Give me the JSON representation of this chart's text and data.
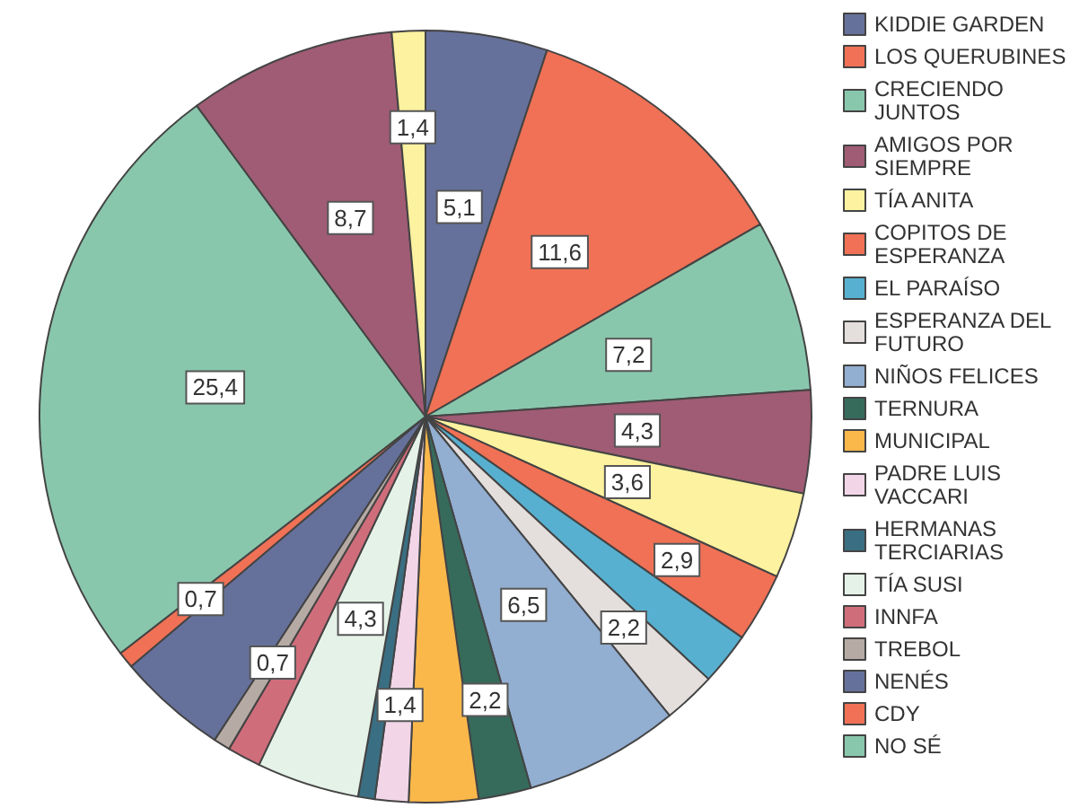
{
  "chart_data": {
    "type": "pie",
    "categories": [
      "KIDDIE GARDEN",
      "LOS QUERUBINES",
      "CRECIENDO JUNTOS",
      "AMIGOS POR SIEMPRE",
      "TÍA ANITA",
      "COPITOS DE ESPERANZA",
      "EL PARAÍSO",
      "ESPERANZA DEL FUTURO",
      "NIÑOS FELICES",
      "TERNURA",
      "MUNICIPAL",
      "PADRE LUIS VACCARI",
      "HERMANAS TERCIARIAS",
      "TÍA SUSI",
      "INNFA",
      "TREBOL",
      "NENÉS",
      "CDY",
      "NO SÉ",
      null,
      null
    ],
    "values": [
      5.1,
      11.6,
      7.2,
      4.3,
      3.6,
      2.9,
      2.2,
      2.2,
      6.5,
      2.2,
      2.9,
      1.4,
      0.7,
      4.3,
      1.4,
      0.7,
      4.6,
      0.7,
      25.4,
      8.7,
      1.4
    ],
    "value_labels": [
      "5,1",
      "11,6",
      "7,2",
      "4,3",
      "3,6",
      "2,9",
      null,
      "2,2",
      "6,5",
      "2,2",
      null,
      "1,4",
      null,
      "4,3",
      null,
      "0,7",
      null,
      "0,7",
      "25,4",
      "8,7",
      "1,4"
    ],
    "colors": [
      "#66719b",
      "#f07155",
      "#89c7ad",
      "#a05c74",
      "#fcf29f",
      "#f07155",
      "#58b0d0",
      "#e4dfdc",
      "#92aed1",
      "#366b5c",
      "#fbb84a",
      "#f2d6e8",
      "#3a6f83",
      "#e5f2e8",
      "#d06d7b",
      "#b6aba4",
      "#66719b",
      "#f07155",
      "#89c7ad",
      "#a05c74",
      "#fcf29f"
    ],
    "legend": "right"
  }
}
